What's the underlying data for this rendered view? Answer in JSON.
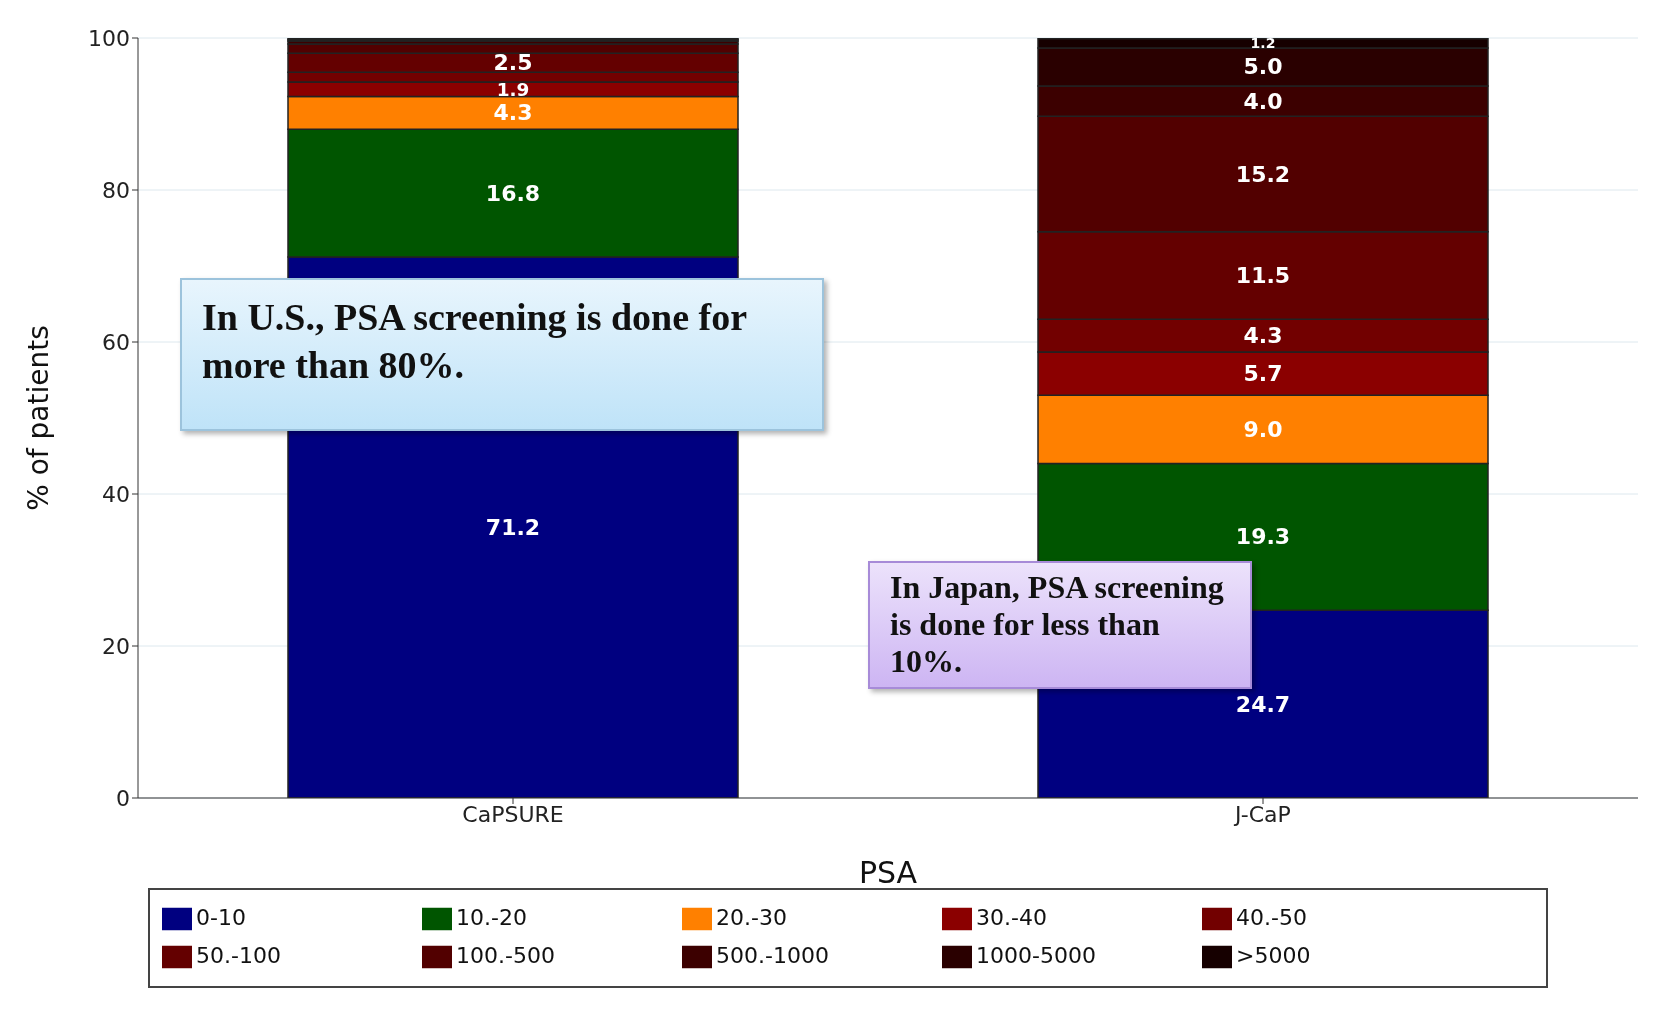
{
  "chart_data": {
    "type": "bar",
    "stacked": true,
    "xlabel": "PSA",
    "ylabel": "% of patients",
    "categories": [
      "CaPSURE",
      "J-CaP"
    ],
    "series": [
      {
        "name": "0-10",
        "color": "#000080",
        "values": [
          71.2,
          24.7
        ],
        "value_labels": [
          "71.2",
          "24.7"
        ]
      },
      {
        "name": "10.-20",
        "color": "#005500",
        "values": [
          16.8,
          19.3
        ],
        "value_labels": [
          "16.8",
          "19.3"
        ]
      },
      {
        "name": "20.-30",
        "color": "#ff8000",
        "values": [
          4.3,
          9.0
        ],
        "value_labels": [
          "4.3",
          "9.0"
        ]
      },
      {
        "name": "30.-40",
        "color": "#8b0000",
        "values": [
          1.9,
          5.7
        ],
        "value_labels": [
          "1.9",
          "5.7"
        ]
      },
      {
        "name": "40.-50",
        "color": "#720000",
        "values": [
          1.3,
          4.3
        ],
        "value_labels": [
          null,
          "4.3"
        ]
      },
      {
        "name": "50.-100",
        "color": "#640000",
        "values": [
          2.5,
          11.5
        ],
        "value_labels": [
          "2.5",
          "11.5"
        ]
      },
      {
        "name": "100.-500",
        "color": "#520000",
        "values": [
          1.2,
          15.2
        ],
        "value_labels": [
          null,
          "15.2"
        ]
      },
      {
        "name": "500.-1000",
        "color": "#3c0000",
        "values": [
          0.4,
          4.0
        ],
        "value_labels": [
          null,
          "4.0"
        ]
      },
      {
        "name": "1000-5000",
        "color": "#2a0000",
        "values": [
          0.2,
          5.0
        ],
        "value_labels": [
          null,
          "5.0"
        ]
      },
      {
        "name": ">5000",
        "color": "#160000",
        "values": [
          0.2,
          1.2
        ],
        "value_labels": [
          null,
          "1.2"
        ]
      }
    ],
    "ylim": [
      0,
      100
    ],
    "yticks": [
      0,
      20,
      40,
      60,
      80,
      100
    ],
    "grid": "y",
    "legend": "bottom",
    "annotations": [
      "In U.S., PSA screening is done for more than 80%.",
      "In Japan, PSA screening is done for less than 10%."
    ]
  }
}
